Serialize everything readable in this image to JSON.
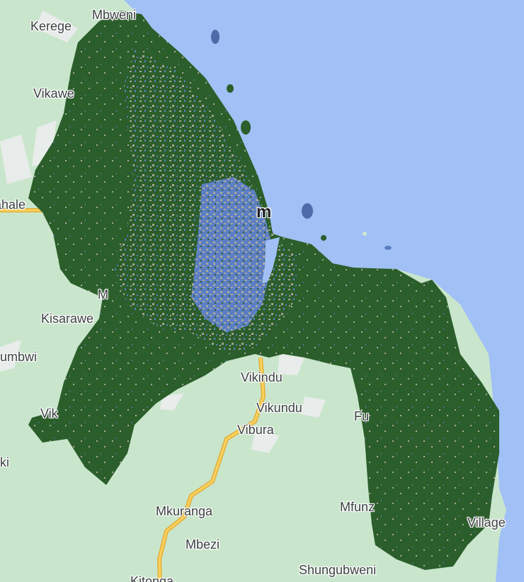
{
  "map": {
    "colors": {
      "land": "#c9e6cc",
      "water": "#a1c0f5",
      "landcover_forest": "#2b5e2b",
      "landcover_bare": "#aaa89a",
      "landcover_built": "#5c7fc4",
      "road": "#f7d05e",
      "road_casing": "#e4a72b",
      "minor_area": "#e8ecea"
    },
    "labels": {
      "kerege": "Kerege",
      "mbweni": "Mbweni",
      "vikawe": "Vikawe",
      "chalinze": "ahale",
      "kisarawe": "Kisarawe",
      "m_label": "M",
      "mbwi": "umbwi",
      "vikumburu": "Vik",
      "ki": "ki",
      "dar_es_salaam": "m",
      "vikindu": "Vikindu",
      "vikundu": "Vikundu",
      "vibura": "Vibura",
      "fu": "Fu",
      "mkuranga": "Mkuranga",
      "mbezi": "Mbezi",
      "mfunzi": "Mfunz",
      "village": "Village",
      "shungubweni": "Shungubweni",
      "kitonga": "Kitonga"
    }
  }
}
